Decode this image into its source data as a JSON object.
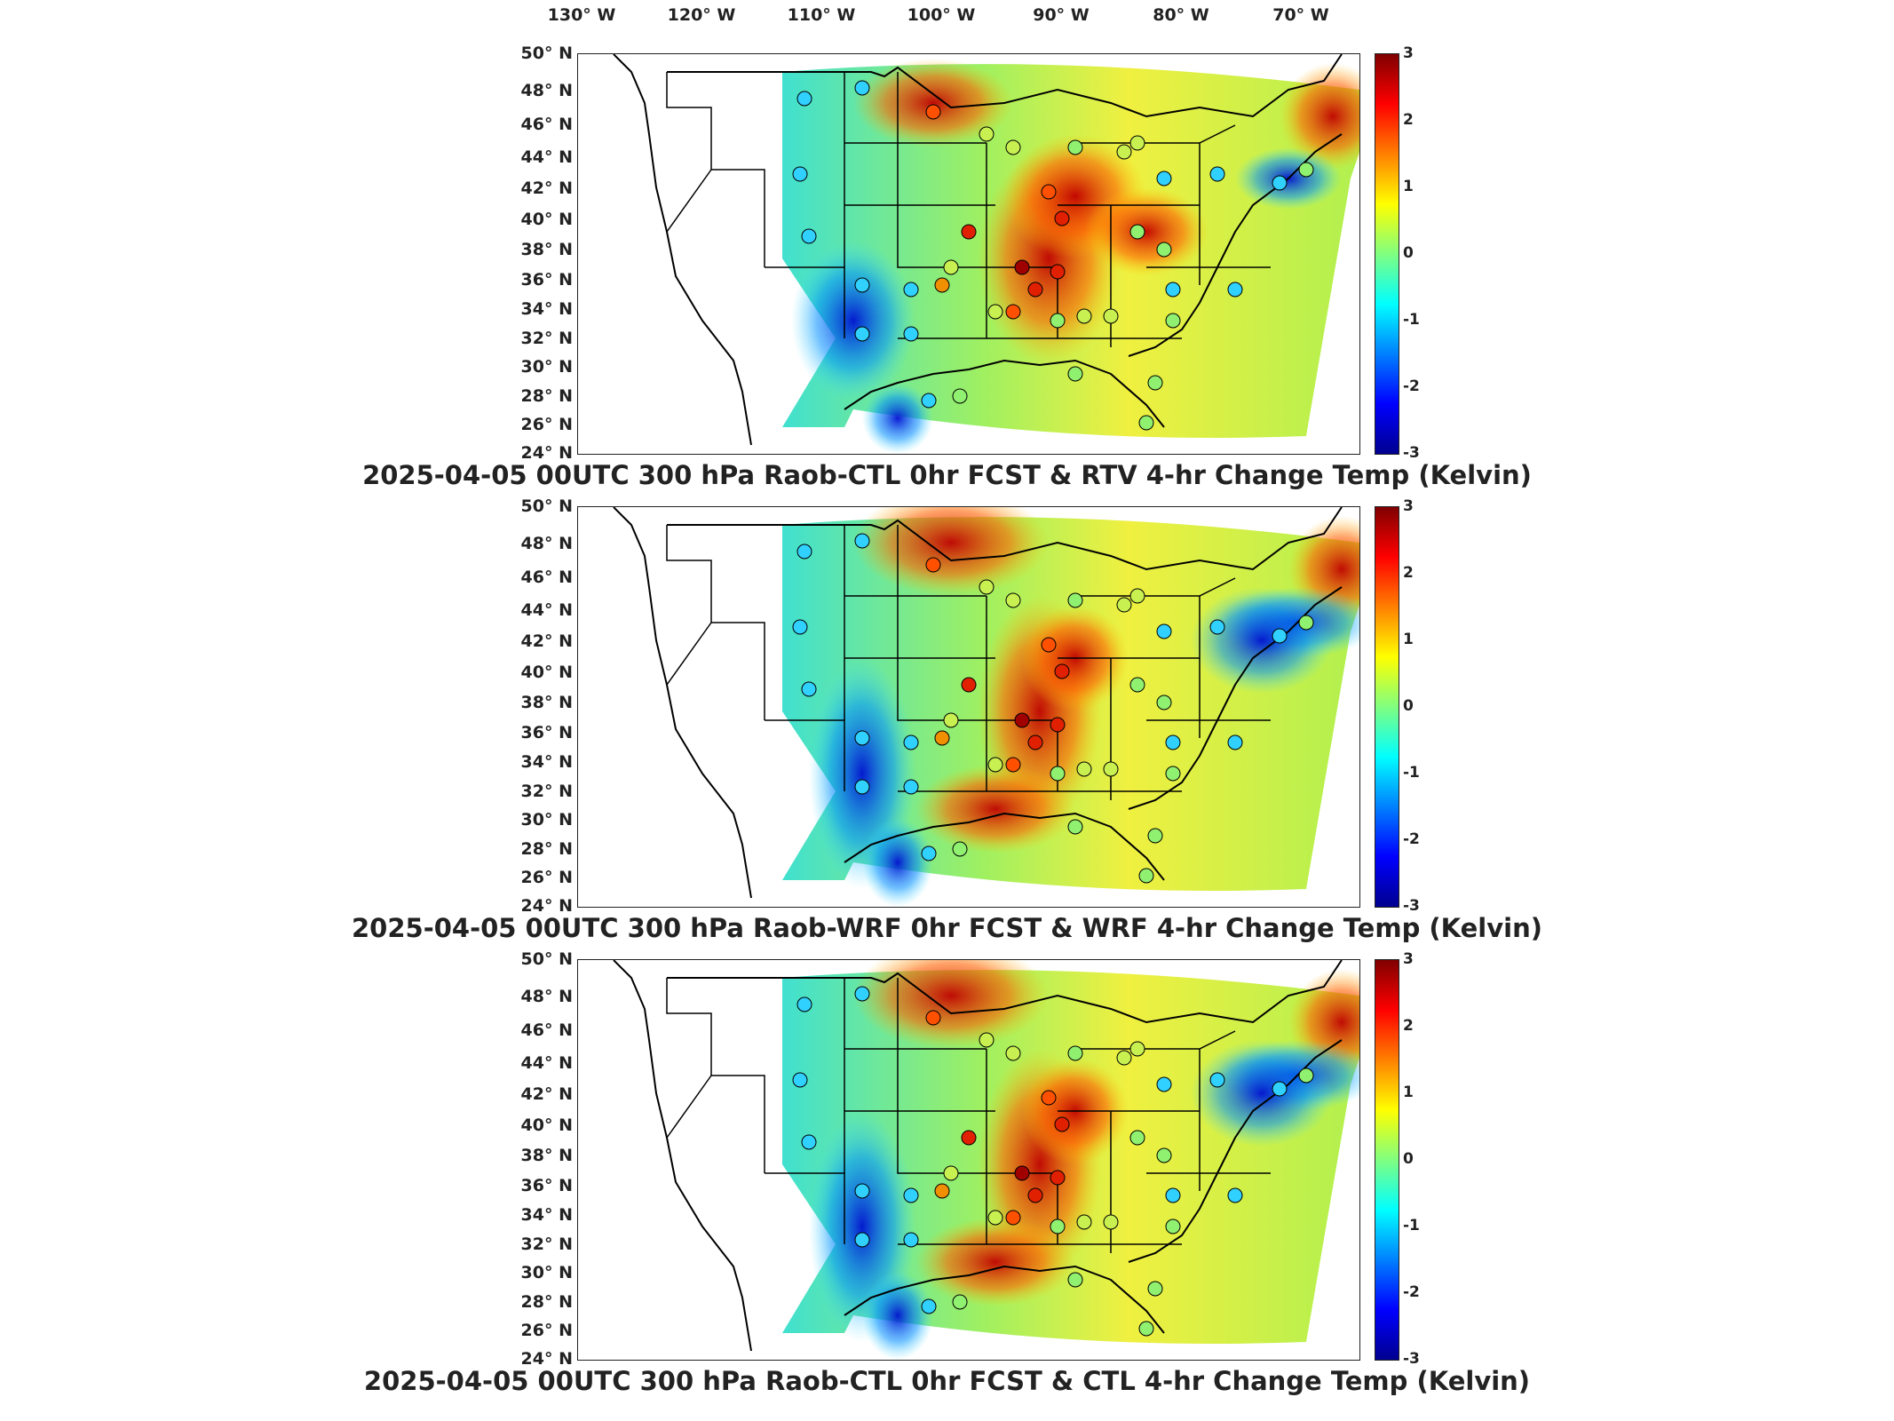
{
  "longitude_labels": [
    "130",
    "120",
    "110",
    "100",
    "90",
    "80",
    "70"
  ],
  "longitude_suffix": "W",
  "latitude_labels": [
    "50",
    "48",
    "46",
    "44",
    "42",
    "40",
    "38",
    "36",
    "34",
    "32",
    "30",
    "28",
    "26",
    "24"
  ],
  "latitude_suffix": "N",
  "degree_symbol": "°",
  "colorbar_ticks": [
    "3",
    "2",
    "1",
    "0",
    "-1",
    "-2",
    "-3"
  ],
  "colors": {
    "cold_extreme": "#00008f",
    "neutral": "#80ff80",
    "warm_extreme": "#800000",
    "outline": "#000000"
  },
  "panels": [
    {
      "title": "2025-04-05 00UTC 300 hPa Raob-CTL 0hr FCST & RTV 4-hr Change Temp (Kelvin)",
      "color_range": [
        -3,
        3
      ]
    },
    {
      "title": "2025-04-05 00UTC 300 hPa Raob-WRF 0hr FCST & WRF 4-hr Change Temp (Kelvin)",
      "color_range": [
        -3,
        3
      ]
    },
    {
      "title": "2025-04-05 00UTC 300 hPa Raob-CTL 0hr FCST & CTL 4-hr Change Temp (Kelvin)",
      "color_range": [
        -3,
        3
      ]
    }
  ]
}
